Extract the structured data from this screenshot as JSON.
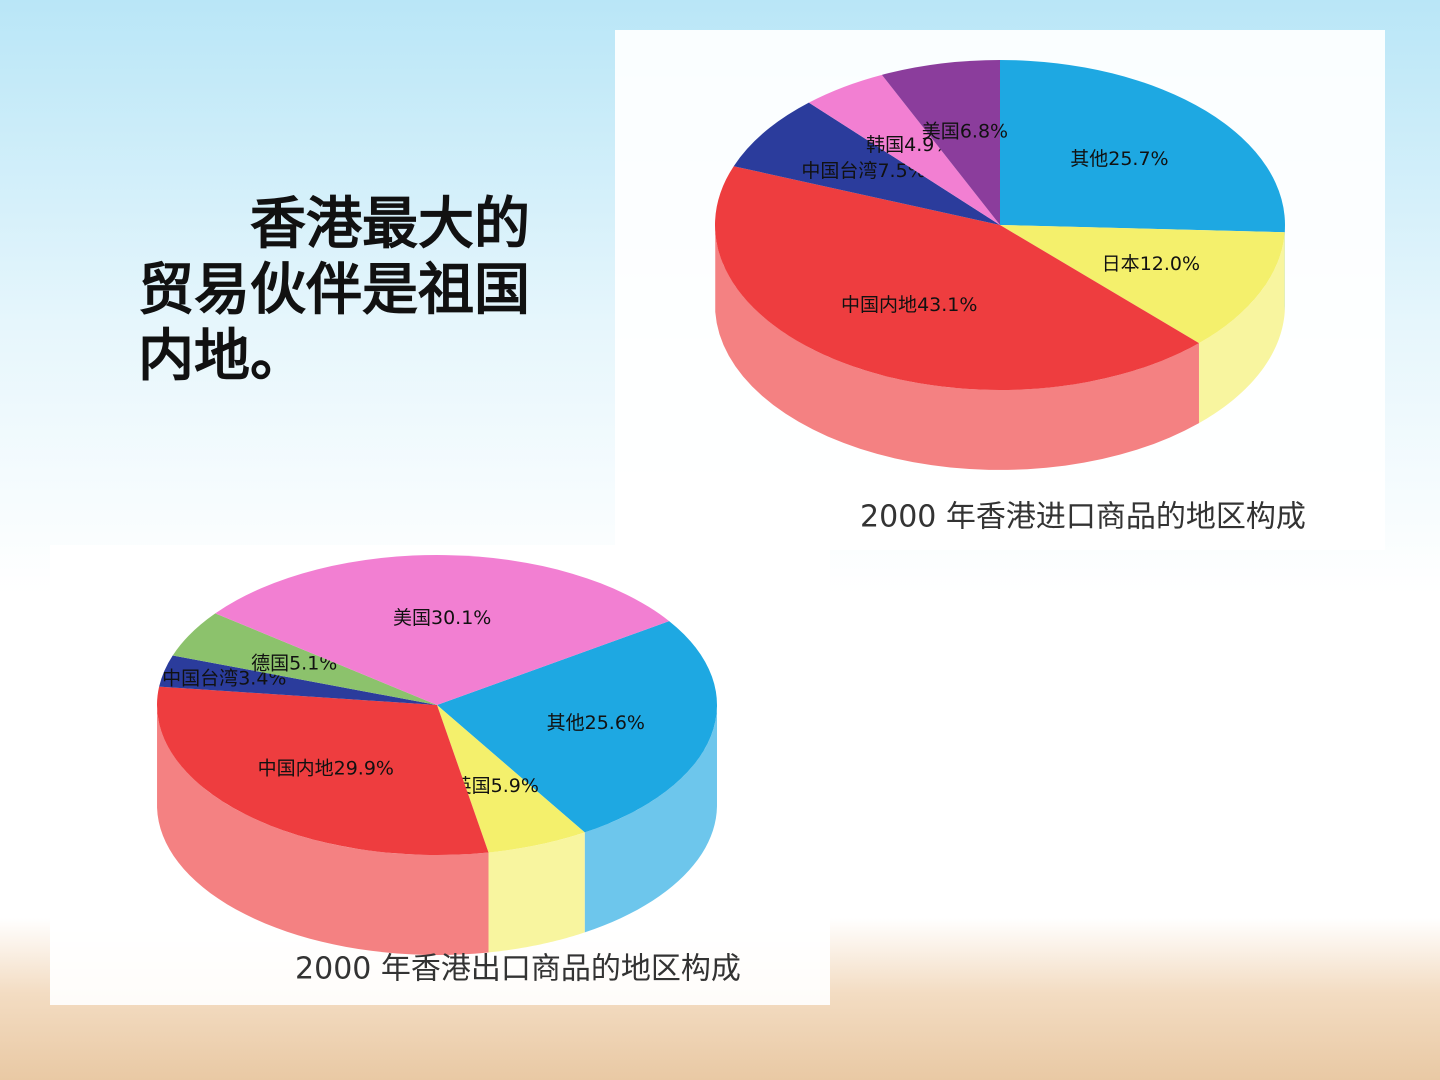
{
  "heading": "香港最大的贸易伙伴是祖国内地。",
  "chart_data": [
    {
      "type": "pie",
      "title": "2000 年香港进口商品的地区构成",
      "categories": [
        "其他",
        "日本",
        "中国内地",
        "中国台湾",
        "韩国",
        "美国"
      ],
      "values": [
        25.7,
        12.0,
        43.1,
        7.5,
        4.9,
        6.8
      ],
      "value_labels": [
        "25.7%",
        "12.0%",
        "43.1%",
        "7.5%",
        "4.9%",
        "6.8%"
      ],
      "colors": [
        "#1ea8e2",
        "#f4f06c",
        "#ee3d3f",
        "#2b3c9c",
        "#f27fd2",
        "#8b3d9c"
      ]
    },
    {
      "type": "pie",
      "title": "2000 年香港出口商品的地区构成",
      "categories": [
        "其他",
        "英国",
        "中国内地",
        "中国台湾",
        "德国",
        "美国"
      ],
      "values": [
        25.6,
        5.9,
        29.9,
        3.4,
        5.1,
        30.1
      ],
      "value_labels": [
        "25.6%",
        "5.9%",
        "29.9%",
        "3.4%",
        "5.1%",
        "30.1%"
      ],
      "colors": [
        "#1ea8e2",
        "#f4f06c",
        "#ee3d3f",
        "#2b3c9c",
        "#8cc26c",
        "#f27fd2"
      ]
    }
  ]
}
